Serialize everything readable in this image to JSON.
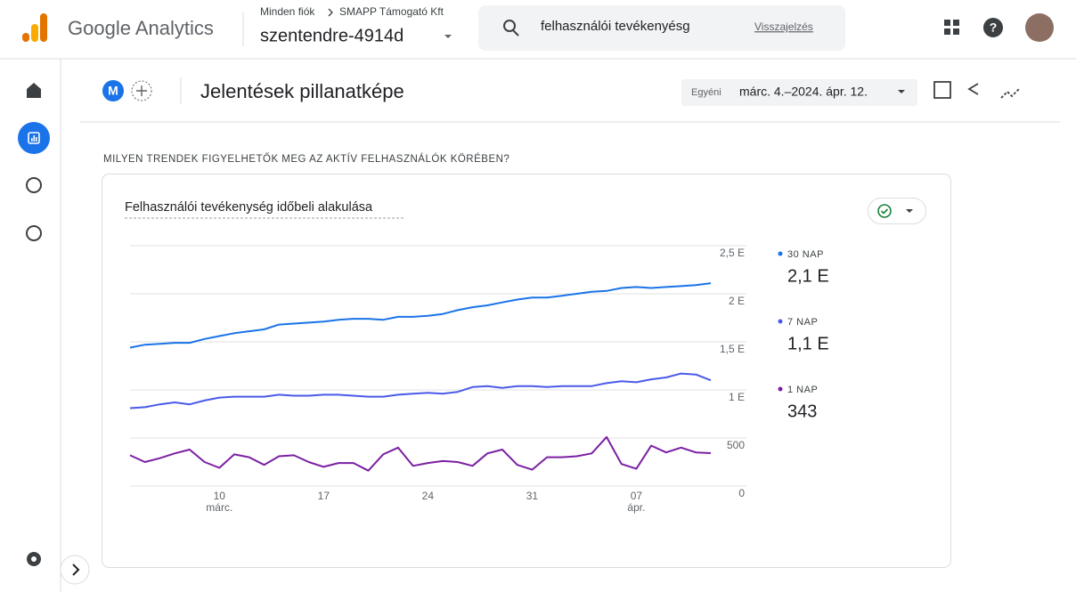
{
  "header": {
    "product": "Google Analytics",
    "breadcrumb_root": "Minden fiók",
    "breadcrumb_account": "SMAPP Támogató Kft",
    "property": "szentendre-4914d",
    "search": "felhasználói tevékenyésg",
    "feedback": "Visszajelzés"
  },
  "toolbar": {
    "avatar": "M",
    "title": "Jelentések pillanatképe",
    "date_mode": "Egyéni",
    "date_range": "márc. 4.–2024. ápr. 12."
  },
  "section": "MILYEN TRENDEK FIGYELHETŐK MEG AZ AKTÍV FELHASZNÁLÓK KÖRÉBEN?",
  "chart_data": {
    "type": "line",
    "title": "Felhasználói tevékenység időbeli alakulása",
    "categories": [
      null,
      null,
      null,
      null,
      null,
      null,
      "10 márc.",
      null,
      null,
      null,
      null,
      null,
      null,
      "17",
      null,
      null,
      null,
      null,
      null,
      null,
      "24",
      null,
      null,
      null,
      null,
      null,
      null,
      "31",
      null,
      null,
      null,
      null,
      null,
      null,
      "07 ápr.",
      null,
      null,
      null,
      null,
      null
    ],
    "series": [
      {
        "name": "30 NAP",
        "summary": "2,1 E",
        "color": "#1a73e8",
        "values": [
          1440,
          1470,
          1480,
          1490,
          1490,
          1530,
          1560,
          1590,
          1610,
          1630,
          1680,
          1690,
          1700,
          1710,
          1730,
          1740,
          1740,
          1730,
          1760,
          1760,
          1770,
          1790,
          1830,
          1860,
          1880,
          1910,
          1940,
          1960,
          1960,
          1980,
          2000,
          2020,
          2030,
          2060,
          2070,
          2060,
          2070,
          2080,
          2090,
          2110
        ]
      },
      {
        "name": "7 NAP",
        "summary": "1,1 E",
        "color": "#4a5ae8",
        "values": [
          810,
          820,
          850,
          870,
          850,
          890,
          920,
          930,
          930,
          930,
          950,
          940,
          940,
          950,
          950,
          940,
          930,
          930,
          950,
          960,
          970,
          960,
          980,
          1030,
          1040,
          1020,
          1040,
          1040,
          1030,
          1040,
          1040,
          1040,
          1070,
          1090,
          1080,
          1110,
          1130,
          1170,
          1160,
          1100
        ]
      },
      {
        "name": "1 NAP",
        "summary": "343",
        "color": "#7b1fa2",
        "values": [
          320,
          250,
          290,
          340,
          380,
          250,
          190,
          330,
          300,
          220,
          310,
          320,
          250,
          200,
          240,
          240,
          160,
          330,
          400,
          210,
          240,
          260,
          250,
          210,
          340,
          380,
          220,
          170,
          300,
          300,
          310,
          340,
          510,
          230,
          180,
          420,
          350,
          400,
          350,
          343
        ]
      }
    ],
    "ylim": [
      0,
      2500
    ],
    "yticks": [
      0,
      500,
      {
        "value": 1000,
        "label": "1 E"
      },
      {
        "value": 1500,
        "label": "1,5 E"
      },
      {
        "value": 2000,
        "label": "2 E"
      },
      {
        "value": 2500,
        "label": "2,5 E"
      }
    ],
    "grid": true
  }
}
